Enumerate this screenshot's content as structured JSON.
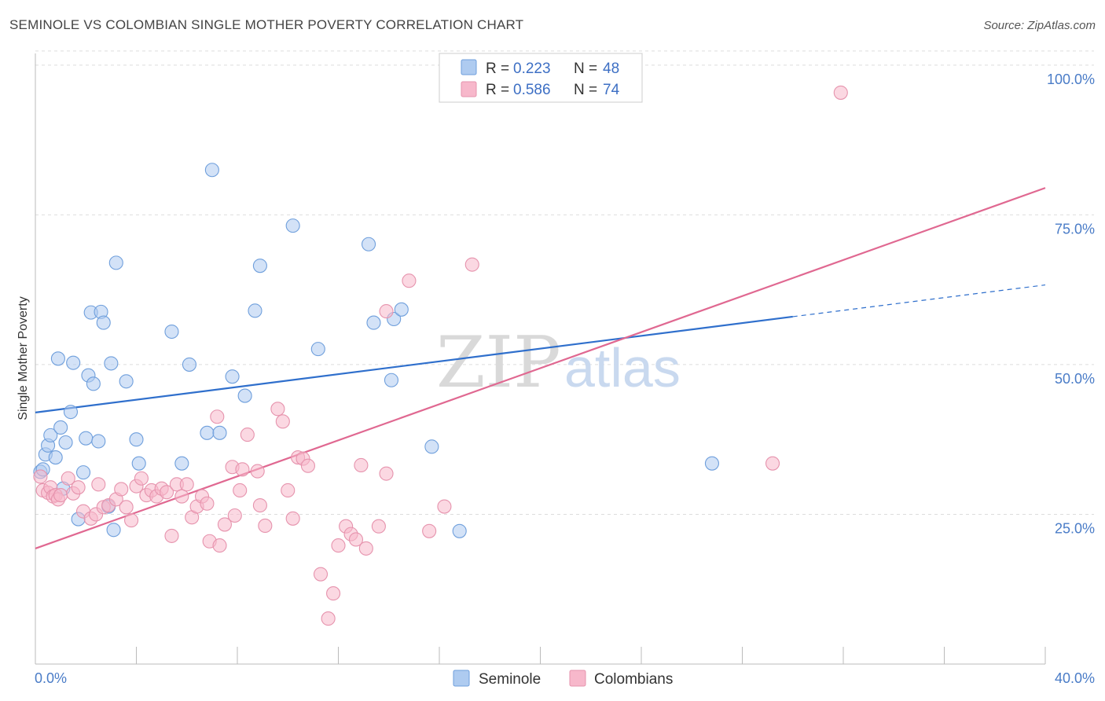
{
  "header": {
    "title": "SEMINOLE VS COLOMBIAN SINGLE MOTHER POVERTY CORRELATION CHART",
    "source": "Source: ZipAtlas.com"
  },
  "watermark": {
    "zip": "ZIP",
    "atlas": "atlas"
  },
  "legend": {
    "rows": [
      {
        "r_label": "R =",
        "r_value": "0.223",
        "n_label": "N =",
        "n_value": "48",
        "color": "#aecbf0"
      },
      {
        "r_label": "R =",
        "r_value": "0.586",
        "n_label": "N =",
        "n_value": "74",
        "color": "#f7b8cb"
      }
    ]
  },
  "bottom_legend": [
    {
      "label": "Seminole",
      "color": "#aecbf0"
    },
    {
      "label": "Colombians",
      "color": "#f7b8cb"
    }
  ],
  "chart_data": {
    "type": "scatter",
    "ylabel": "Single Mother Poverty",
    "xlim": [
      0,
      40
    ],
    "ylim": [
      0,
      103
    ],
    "x_tick_labels": [
      "0.0%",
      "40.0%"
    ],
    "y_ticks": [
      {
        "value": 25,
        "label": "25.0%"
      },
      {
        "value": 50,
        "label": "50.0%"
      },
      {
        "value": 75,
        "label": "75.0%"
      },
      {
        "value": 100,
        "label": "100.0%"
      }
    ],
    "grid": "horizontal dashed",
    "legend_position": "top-center",
    "series": [
      {
        "name": "Seminole",
        "color": "#aecbf0",
        "stroke": "#6f9fdc",
        "trend_color": "#2f6fcc",
        "trend": {
          "x0": 0,
          "y0": 42.0,
          "x1": 30,
          "y1": 58.0,
          "dash_to_x": 40,
          "dash_to_y": 63.3
        },
        "points": [
          [
            0.2,
            32.1
          ],
          [
            0.3,
            32.5
          ],
          [
            0.4,
            35.0
          ],
          [
            0.5,
            36.5
          ],
          [
            0.6,
            38.2
          ],
          [
            0.8,
            34.5
          ],
          [
            0.9,
            51.0
          ],
          [
            1.0,
            39.5
          ],
          [
            1.2,
            37.0
          ],
          [
            1.4,
            42.1
          ],
          [
            1.5,
            50.3
          ],
          [
            1.7,
            24.2
          ],
          [
            1.9,
            32.0
          ],
          [
            2.0,
            37.7
          ],
          [
            2.1,
            48.2
          ],
          [
            2.2,
            58.7
          ],
          [
            2.3,
            46.8
          ],
          [
            2.5,
            37.2
          ],
          [
            2.6,
            58.8
          ],
          [
            2.7,
            57.0
          ],
          [
            2.9,
            26.3
          ],
          [
            3.0,
            50.2
          ],
          [
            3.1,
            22.4
          ],
          [
            3.2,
            67.0
          ],
          [
            3.6,
            47.2
          ],
          [
            4.0,
            37.5
          ],
          [
            4.1,
            33.5
          ],
          [
            5.4,
            55.5
          ],
          [
            5.8,
            33.5
          ],
          [
            6.1,
            50.0
          ],
          [
            6.8,
            38.6
          ],
          [
            7.0,
            82.5
          ],
          [
            7.3,
            38.6
          ],
          [
            7.8,
            48.0
          ],
          [
            8.3,
            44.8
          ],
          [
            8.7,
            59.0
          ],
          [
            8.9,
            66.5
          ],
          [
            10.2,
            73.2
          ],
          [
            11.2,
            52.6
          ],
          [
            13.2,
            70.1
          ],
          [
            13.4,
            57.0
          ],
          [
            14.1,
            47.4
          ],
          [
            14.2,
            57.6
          ],
          [
            14.5,
            59.2
          ],
          [
            15.7,
            36.3
          ],
          [
            16.8,
            22.2
          ],
          [
            26.8,
            33.5
          ],
          [
            1.1,
            29.3
          ]
        ]
      },
      {
        "name": "Colombians",
        "color": "#f7b8cb",
        "stroke": "#e693ad",
        "trend_color": "#e06891",
        "trend": {
          "x0": 0,
          "y0": 19.3,
          "x1": 40,
          "y1": 79.5
        },
        "points": [
          [
            0.2,
            31.3
          ],
          [
            0.3,
            29.0
          ],
          [
            0.5,
            28.6
          ],
          [
            0.6,
            29.5
          ],
          [
            0.7,
            28.0
          ],
          [
            0.8,
            28.2
          ],
          [
            0.9,
            27.5
          ],
          [
            1.0,
            28.2
          ],
          [
            1.3,
            31.0
          ],
          [
            1.5,
            28.5
          ],
          [
            1.7,
            29.5
          ],
          [
            1.9,
            25.5
          ],
          [
            2.2,
            24.3
          ],
          [
            2.4,
            25.0
          ],
          [
            2.5,
            30.0
          ],
          [
            2.7,
            26.2
          ],
          [
            2.9,
            26.5
          ],
          [
            3.2,
            27.5
          ],
          [
            3.4,
            29.2
          ],
          [
            3.6,
            26.2
          ],
          [
            3.8,
            24.0
          ],
          [
            4.0,
            29.7
          ],
          [
            4.2,
            31.0
          ],
          [
            4.4,
            28.2
          ],
          [
            4.6,
            29.0
          ],
          [
            4.8,
            28.0
          ],
          [
            5.0,
            29.3
          ],
          [
            5.2,
            28.7
          ],
          [
            5.4,
            21.4
          ],
          [
            5.6,
            30.0
          ],
          [
            5.8,
            28.0
          ],
          [
            6.0,
            30.0
          ],
          [
            6.2,
            24.5
          ],
          [
            6.4,
            26.3
          ],
          [
            6.6,
            28.0
          ],
          [
            6.8,
            26.8
          ],
          [
            6.9,
            20.5
          ],
          [
            7.2,
            41.3
          ],
          [
            7.3,
            19.8
          ],
          [
            7.5,
            23.3
          ],
          [
            7.8,
            32.9
          ],
          [
            7.9,
            24.8
          ],
          [
            8.1,
            29.0
          ],
          [
            8.2,
            32.5
          ],
          [
            8.4,
            38.3
          ],
          [
            8.8,
            32.2
          ],
          [
            8.9,
            26.5
          ],
          [
            9.1,
            23.1
          ],
          [
            9.6,
            42.6
          ],
          [
            9.8,
            40.5
          ],
          [
            10.0,
            29.0
          ],
          [
            10.2,
            24.3
          ],
          [
            10.4,
            34.5
          ],
          [
            10.6,
            34.3
          ],
          [
            10.8,
            33.1
          ],
          [
            11.3,
            15.0
          ],
          [
            11.6,
            7.6
          ],
          [
            11.8,
            11.8
          ],
          [
            12.0,
            19.8
          ],
          [
            12.3,
            23.0
          ],
          [
            12.5,
            21.7
          ],
          [
            12.7,
            20.8
          ],
          [
            12.9,
            33.2
          ],
          [
            13.1,
            19.3
          ],
          [
            13.6,
            23.0
          ],
          [
            13.9,
            31.8
          ],
          [
            14.8,
            64.0
          ],
          [
            15.6,
            22.2
          ],
          [
            16.2,
            26.3
          ],
          [
            17.3,
            66.7
          ],
          [
            13.9,
            58.9
          ],
          [
            22.6,
            100.3
          ],
          [
            29.2,
            33.5
          ],
          [
            31.9,
            95.4
          ]
        ]
      }
    ]
  }
}
